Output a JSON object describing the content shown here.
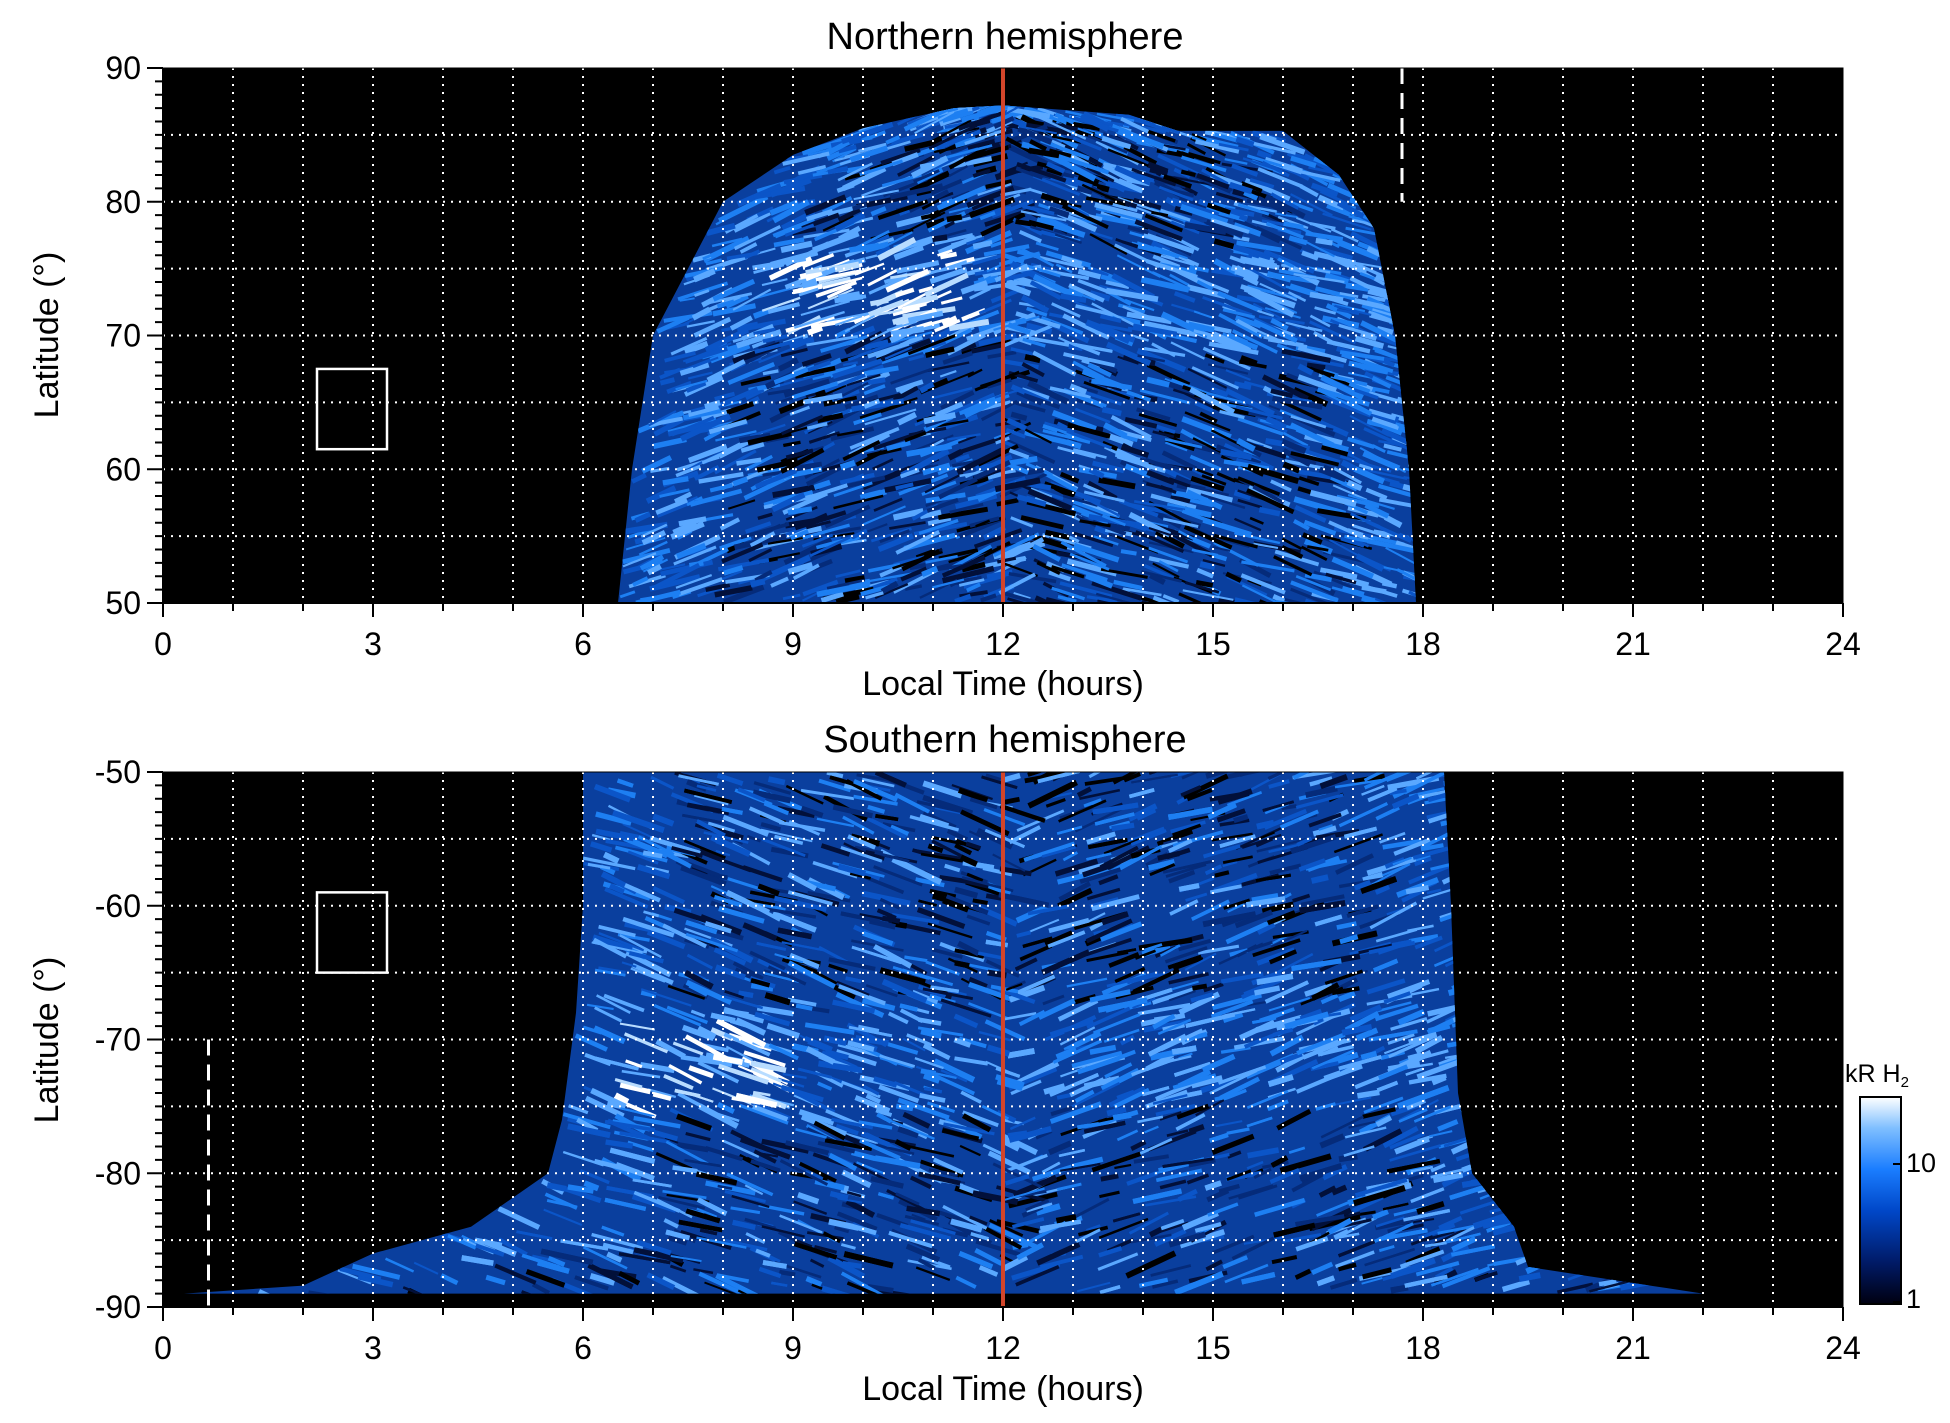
{
  "chart_data": [
    {
      "type": "heatmap",
      "title": "Northern hemisphere",
      "xlabel": "Local Time (hours)",
      "ylabel": "Latitude (°)",
      "xlim": [
        0,
        24
      ],
      "ylim": [
        50,
        90
      ],
      "xticks": [
        "0",
        "3",
        "6",
        "9",
        "12",
        "15",
        "18",
        "21",
        "24"
      ],
      "yticks": [
        "50",
        "60",
        "70",
        "80",
        "90"
      ],
      "grid": true,
      "noon_line_lt": 12,
      "dashed_line_lt": 17.7,
      "dashed_line_span": [
        80,
        90
      ],
      "box": {
        "lt": [
          2.2,
          3.2
        ],
        "lat": [
          61.5,
          67.5
        ]
      },
      "emission_region": {
        "profile": [
          [
            6.5,
            50
          ],
          [
            6.7,
            60
          ],
          [
            7.0,
            70
          ],
          [
            7.6,
            76
          ],
          [
            8.0,
            80
          ],
          [
            9.0,
            83.5
          ],
          [
            10.0,
            85.5
          ],
          [
            11.3,
            87
          ],
          [
            12,
            87.2
          ],
          [
            13.8,
            86.5
          ],
          [
            14.5,
            85.3
          ],
          [
            16.0,
            85.3
          ],
          [
            16.8,
            82
          ],
          [
            17.3,
            78
          ],
          [
            17.6,
            70
          ],
          [
            17.8,
            60
          ],
          [
            17.9,
            50
          ]
        ],
        "auroral_oval_lat": 73,
        "auroral_oval_peak_lt": [
          8.5,
          11.5
        ]
      }
    },
    {
      "type": "heatmap",
      "title": "Southern hemisphere",
      "xlabel": "Local Time (hours)",
      "ylabel": "Latitude (°)",
      "xlim": [
        0,
        24
      ],
      "ylim": [
        -90,
        -50
      ],
      "xticks": [
        "0",
        "3",
        "6",
        "9",
        "12",
        "15",
        "18",
        "21",
        "24"
      ],
      "yticks": [
        "-90",
        "-80",
        "-70",
        "-60",
        "-50"
      ],
      "grid": true,
      "noon_line_lt": 12,
      "dashed_line_lt": 0.65,
      "dashed_line_span": [
        -90,
        -70
      ],
      "box": {
        "lt": [
          2.2,
          3.2
        ],
        "lat": [
          -65,
          -59
        ]
      },
      "emission_region": {
        "profile": [
          [
            6.0,
            -50
          ],
          [
            6.0,
            -60
          ],
          [
            5.9,
            -68
          ],
          [
            5.7,
            -76
          ],
          [
            5.5,
            -80
          ],
          [
            4.4,
            -84
          ],
          [
            3.0,
            -86
          ],
          [
            2.0,
            -88.4
          ],
          [
            0.3,
            -89
          ],
          [
            22.0,
            -89
          ],
          [
            21.5,
            -88.6
          ],
          [
            19.5,
            -87
          ],
          [
            19.3,
            -84
          ],
          [
            18.7,
            -80
          ],
          [
            18.5,
            -74
          ],
          [
            18.4,
            -60
          ],
          [
            18.3,
            -50
          ]
        ],
        "auroral_oval_lat": -71.5,
        "auroral_oval_peak_lt": [
          6.3,
          8.5
        ]
      }
    }
  ],
  "colorbar": {
    "label": "kR H",
    "label_sub": "2",
    "ticks": [
      "1",
      "10"
    ],
    "colors": [
      "#000010",
      "#001a66",
      "#0047c8",
      "#1a7dff",
      "#7fbfff",
      "#ffffff"
    ]
  },
  "colors": {
    "background": "#000000",
    "grid": "#ffffff",
    "noon_line": "#d2452a",
    "low": "#03123d",
    "mid": "#0b5fd6",
    "high": "#e6f3ff"
  }
}
